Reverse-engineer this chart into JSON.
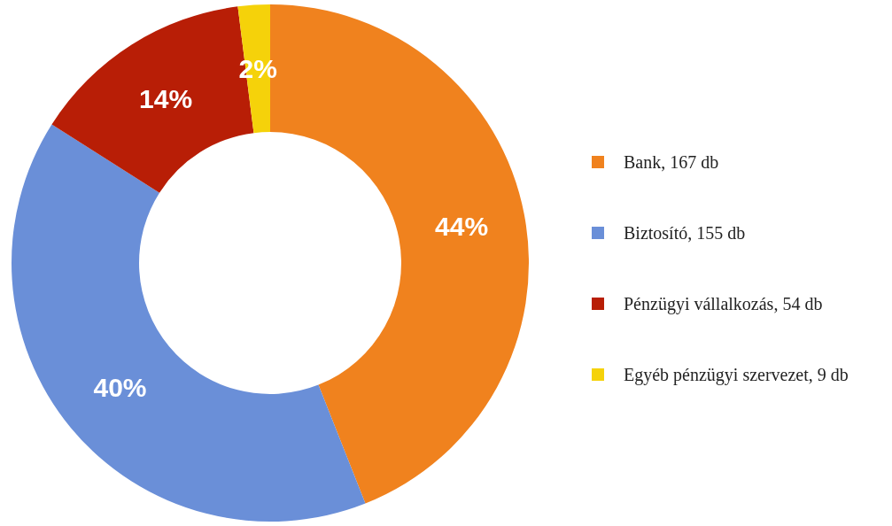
{
  "chart_data": {
    "type": "donut",
    "categories": [
      "Bank, 167 db",
      "Biztosító, 155 db",
      "Pénzügyi vállalkozás, 54 db",
      "Egyéb pénzügyi szervezet, 9 db"
    ],
    "values": [
      44,
      40,
      14,
      2
    ],
    "value_labels": [
      "44%",
      "40%",
      "14%",
      "2%"
    ],
    "colors": [
      "#f0821e",
      "#6a8fd8",
      "#b81e06",
      "#f5d20a"
    ],
    "legend": "right"
  }
}
